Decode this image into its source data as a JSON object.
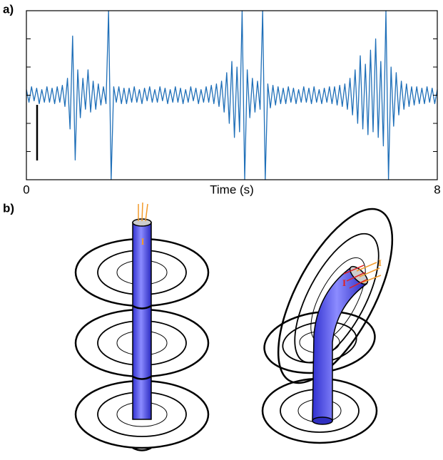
{
  "chart_data": {
    "type": "line",
    "x": [
      0,
      0.05,
      0.1,
      0.15,
      0.2,
      0.25,
      0.3,
      0.35,
      0.4,
      0.45,
      0.5,
      0.55,
      0.6,
      0.65,
      0.7,
      0.75,
      0.8,
      0.85,
      0.9,
      0.95,
      1,
      1.05,
      1.1,
      1.15,
      1.2,
      1.25,
      1.3,
      1.35,
      1.4,
      1.45,
      1.5,
      1.55,
      1.6,
      1.65,
      1.7,
      1.75,
      1.8,
      1.85,
      1.9,
      1.95,
      2,
      2.05,
      2.1,
      2.15,
      2.2,
      2.25,
      2.3,
      2.35,
      2.4,
      2.45,
      2.5,
      2.55,
      2.6,
      2.65,
      2.7,
      2.75,
      2.8,
      2.85,
      2.9,
      2.95,
      3,
      3.05,
      3.1,
      3.15,
      3.2,
      3.25,
      3.3,
      3.35,
      3.4,
      3.45,
      3.5,
      3.55,
      3.6,
      3.65,
      3.7,
      3.75,
      3.8,
      3.85,
      3.9,
      3.95,
      4,
      4.05,
      4.1,
      4.15,
      4.2,
      4.25,
      4.3,
      4.35,
      4.4,
      4.45,
      4.5,
      4.55,
      4.6,
      4.65,
      4.7,
      4.75,
      4.8,
      4.85,
      4.9,
      4.95,
      5,
      5.05,
      5.1,
      5.15,
      5.2,
      5.25,
      5.3,
      5.35,
      5.4,
      5.45,
      5.5,
      5.55,
      5.6,
      5.65,
      5.7,
      5.75,
      5.8,
      5.85,
      5.9,
      5.95,
      6,
      6.05,
      6.1,
      6.15,
      6.2,
      6.25,
      6.3,
      6.35,
      6.4,
      6.45,
      6.5,
      6.55,
      6.6,
      6.65,
      6.7,
      6.75,
      6.8,
      6.85,
      6.9,
      6.95,
      7,
      7.05,
      7.1,
      7.15,
      7.2,
      7.25,
      7.3,
      7.35,
      7.4,
      7.45,
      7.5,
      7.55,
      7.6,
      7.65,
      7.7,
      7.75,
      7.8,
      7.85,
      7.9,
      7.95,
      8
    ],
    "series": [
      {
        "color": "#1f6fb8",
        "values": [
          0.2,
          -0.25,
          0.3,
          -0.2,
          0.25,
          -0.3,
          0.2,
          -0.25,
          0.3,
          -0.25,
          0.25,
          -0.3,
          0.3,
          -0.25,
          0.35,
          -0.4,
          0.6,
          -1.2,
          2.1,
          -2.3,
          0.9,
          -0.8,
          0.6,
          -0.5,
          0.9,
          -0.6,
          0.5,
          -0.5,
          0.4,
          -0.35,
          0.3,
          -0.3,
          3,
          -3,
          0.3,
          -0.25,
          0.3,
          -0.3,
          0.25,
          -0.3,
          0.25,
          -0.25,
          0.3,
          -0.25,
          0.2,
          -0.3,
          0.25,
          -0.2,
          0.3,
          -0.25,
          0.2,
          -0.25,
          0.3,
          -0.2,
          0.25,
          -0.3,
          0.2,
          -0.25,
          0.3,
          -0.25,
          0.25,
          -0.3,
          0.2,
          -0.25,
          0.3,
          -0.2,
          0.25,
          -0.3,
          0.2,
          -0.25,
          0.3,
          -0.25,
          0.35,
          -0.3,
          0.4,
          -0.4,
          0.5,
          -0.6,
          0.8,
          -1.0,
          1.2,
          -1.5,
          1.0,
          -1.3,
          3,
          -3,
          0.9,
          -0.8,
          0.6,
          -0.6,
          0.5,
          -0.5,
          3,
          -3,
          0.4,
          -0.45,
          0.35,
          -0.35,
          0.3,
          -0.3,
          0.25,
          -0.3,
          0.3,
          -0.25,
          0.25,
          -0.3,
          0.2,
          -0.25,
          0.3,
          -0.25,
          0.25,
          -0.3,
          0.3,
          -0.25,
          0.2,
          -0.3,
          0.25,
          -0.25,
          0.3,
          -0.3,
          0.3,
          -0.35,
          0.35,
          -0.4,
          0.4,
          -0.5,
          0.6,
          -0.7,
          0.9,
          -1.0,
          1.4,
          -1.2,
          1.1,
          -1.4,
          1.6,
          -1.3,
          2.0,
          -1.5,
          1.2,
          -1.8,
          3,
          -3,
          1.0,
          -1.1,
          0.8,
          -0.7,
          0.5,
          -0.5,
          0.4,
          -0.4,
          0.3,
          -0.35,
          0.3,
          -0.3,
          0.25,
          -0.3,
          0.3,
          -0.25,
          0.25,
          -0.3,
          0.2
        ]
      }
    ],
    "xlim": [
      0,
      8
    ],
    "xticks": [
      0,
      8
    ],
    "x_label": "Time (s)",
    "ylim": [
      -3,
      3
    ],
    "yticks": [
      -2,
      -1,
      0,
      1,
      2
    ]
  },
  "panel_labels": [
    "a)",
    "b)"
  ],
  "diagram": {
    "current_labels": [
      "I",
      "I",
      "I"
    ]
  }
}
